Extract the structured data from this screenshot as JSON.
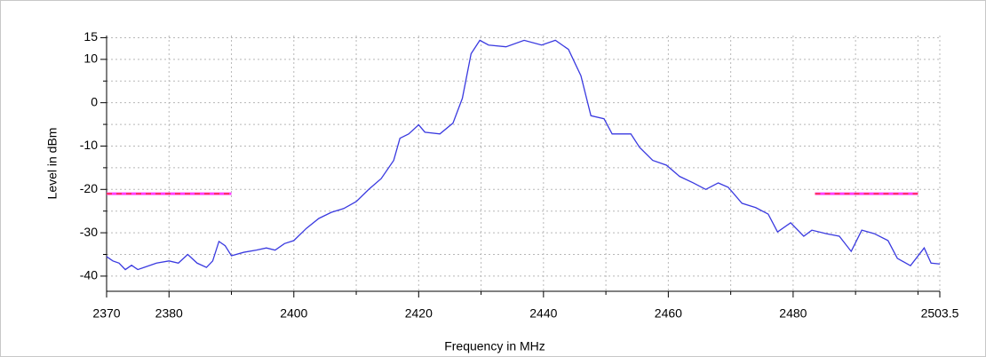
{
  "chart_data": {
    "type": "line",
    "xlabel": "Frequency in MHz",
    "ylabel": "Level in dBm",
    "xlim": [
      2370,
      2503.5
    ],
    "ylim": [
      -43.5,
      15.5
    ],
    "xticks": [
      2370,
      2380,
      2400,
      2420,
      2440,
      2460,
      2480,
      2503.5
    ],
    "xminor": [
      2390,
      2410,
      2430,
      2450,
      2470,
      2490,
      2500
    ],
    "yticks": [
      15,
      10,
      0,
      -10,
      -20,
      -30,
      -40
    ],
    "yminor": [
      5,
      -5,
      -15,
      -25,
      -35
    ],
    "grid": true,
    "x": [
      2370,
      2371,
      2372,
      2373,
      2374,
      2375,
      2376,
      2378,
      2380,
      2381.5,
      2383,
      2384.5,
      2386,
      2387,
      2388,
      2389,
      2390,
      2392,
      2394,
      2395.6,
      2397,
      2398.5,
      2400,
      2402,
      2404,
      2406,
      2408,
      2410,
      2412,
      2414,
      2416,
      2417,
      2418.4,
      2420,
      2421,
      2423.4,
      2425.5,
      2427,
      2428.4,
      2429.8,
      2431.2,
      2434,
      2436.9,
      2439.7,
      2441.9,
      2444,
      2446,
      2447.6,
      2449.7,
      2451,
      2454,
      2455.4,
      2457.5,
      2459.7,
      2461.8,
      2464,
      2466,
      2468,
      2469.6,
      2471.8,
      2474,
      2476,
      2477.5,
      2479.6,
      2481.7,
      2483,
      2485.3,
      2487.4,
      2489.3,
      2491,
      2493,
      2495.2,
      2496.7,
      2498.8,
      2501,
      2502.1,
      2503.5
    ],
    "series": [
      {
        "color": "#3a3ae0",
        "values": [
          -35.5,
          -36.5,
          -37,
          -38.5,
          -37.5,
          -38.5,
          -38,
          -37,
          -36.5,
          -37,
          -35,
          -37,
          -38,
          -36.5,
          -32,
          -33,
          -35.3,
          -34.5,
          -34,
          -33.5,
          -34,
          -32.5,
          -31.8,
          -29,
          -26.7,
          -25.3,
          -24.4,
          -22.8,
          -20,
          -17.5,
          -13.3,
          -8.2,
          -7.2,
          -5.1,
          -6.8,
          -7.2,
          -4.7,
          1,
          11.3,
          14.4,
          13.3,
          12.9,
          14.4,
          13.3,
          14.4,
          12.3,
          6.2,
          -3,
          -3.7,
          -7.2,
          -7.2,
          -10.3,
          -13.3,
          -14.4,
          -17,
          -18.5,
          -20,
          -18.5,
          -19.5,
          -23.2,
          -24.2,
          -25.7,
          -29.8,
          -27.7,
          -30.8,
          -29.4,
          -30.2,
          -30.8,
          -34.3,
          -29.4,
          -30.2,
          -31.8,
          -35.9,
          -37.6,
          -33.5,
          -37,
          -37.2
        ]
      }
    ],
    "limit_lines": [
      {
        "x": [
          2370,
          2390
        ],
        "value": -21,
        "color": "#ff40ff",
        "dash_color": "#ff3030"
      },
      {
        "x": [
          2483.5,
          2500
        ],
        "value": -21,
        "color": "#ff40ff",
        "dash_color": "#ff3030"
      }
    ]
  }
}
